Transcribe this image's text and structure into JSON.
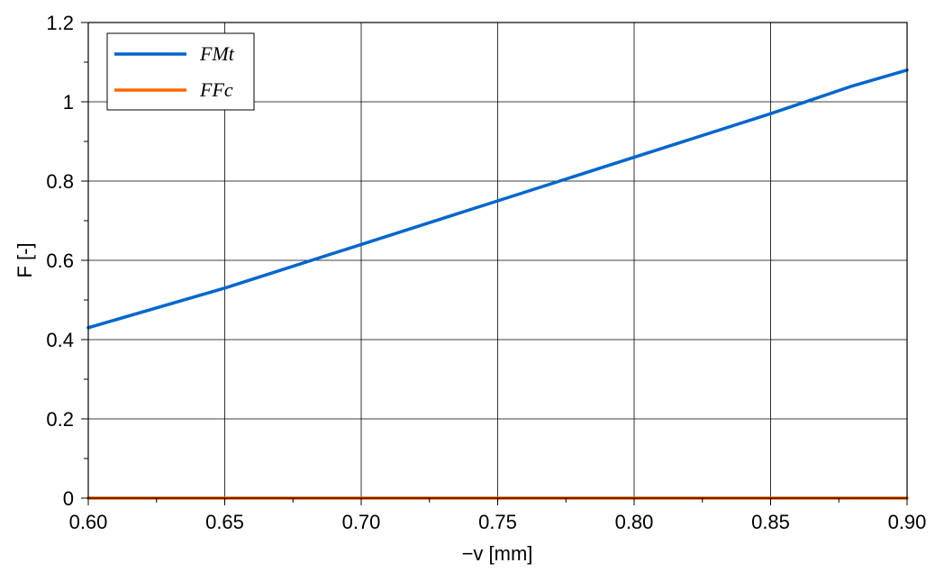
{
  "chart_data": {
    "type": "line",
    "xlabel": "−v [mm]",
    "ylabel": "F [-]",
    "xlim": [
      0.6,
      0.9
    ],
    "ylim": [
      0,
      1.2
    ],
    "x_ticks": [
      "0.60",
      "0.65",
      "0.70",
      "0.75",
      "0.80",
      "0.85",
      "0.90"
    ],
    "y_ticks": [
      "0",
      "0.2",
      "0.4",
      "0.6",
      "0.8",
      "1",
      "1.2"
    ],
    "grid": true,
    "legend_position": "top-left",
    "series": [
      {
        "name": "FMt",
        "color": "#0066CC",
        "x": [
          0.6,
          0.65,
          0.7,
          0.75,
          0.8,
          0.85,
          0.88,
          0.9
        ],
        "y": [
          0.43,
          0.53,
          0.64,
          0.75,
          0.86,
          0.97,
          1.04,
          1.08
        ]
      },
      {
        "name": "FFc",
        "color": "#FF6600",
        "x": [
          0.6,
          0.65,
          0.7,
          0.75,
          0.8,
          0.85,
          0.9
        ],
        "y": [
          0.0,
          0.0,
          0.0,
          0.0,
          0.0,
          0.0,
          0.0
        ]
      }
    ]
  }
}
